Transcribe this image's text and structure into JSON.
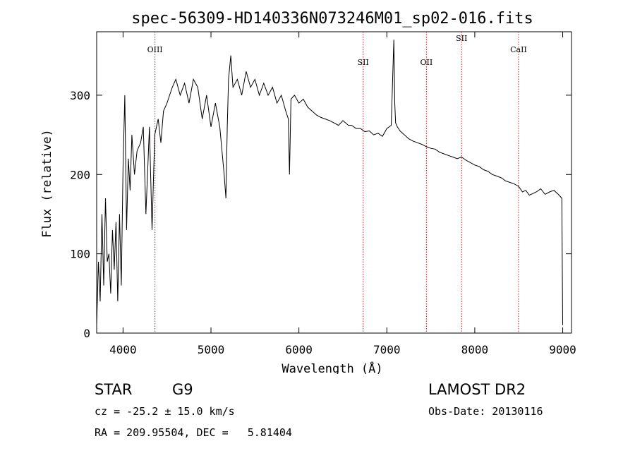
{
  "chart_data": {
    "type": "line",
    "title": "spec-56309-HD140336N073246M01_sp02-016.fits",
    "xlabel": "Wavelength (Å)",
    "ylabel": "Flux (relative)",
    "xlim": [
      3700,
      9100
    ],
    "ylim": [
      0,
      380
    ],
    "xticks": [
      4000,
      5000,
      6000,
      7000,
      8000,
      9000
    ],
    "yticks": [
      0,
      100,
      200,
      300
    ],
    "series_color": "#000000",
    "line_marker_color": "#b22222",
    "line_markers": [
      {
        "label": "OIII",
        "x": 4363
      },
      {
        "label": "SII",
        "x": 6731
      },
      {
        "label": "OII",
        "x": 7450
      },
      {
        "label": "SII",
        "x": 7850
      },
      {
        "label": "CaII",
        "x": 8498
      }
    ],
    "x": [
      3700,
      3720,
      3740,
      3760,
      3780,
      3800,
      3820,
      3840,
      3860,
      3880,
      3900,
      3920,
      3940,
      3960,
      3980,
      4000,
      4020,
      4040,
      4060,
      4080,
      4100,
      4130,
      4160,
      4200,
      4230,
      4260,
      4300,
      4330,
      4360,
      4400,
      4430,
      4460,
      4500,
      4530,
      4560,
      4600,
      4650,
      4700,
      4750,
      4800,
      4850,
      4900,
      4950,
      5000,
      5050,
      5100,
      5150,
      5170,
      5185,
      5200,
      5225,
      5250,
      5300,
      5350,
      5400,
      5450,
      5500,
      5550,
      5600,
      5650,
      5700,
      5750,
      5800,
      5850,
      5880,
      5893,
      5910,
      5950,
      6000,
      6050,
      6100,
      6150,
      6200,
      6250,
      6300,
      6350,
      6400,
      6450,
      6500,
      6563,
      6600,
      6650,
      6700,
      6750,
      6800,
      6850,
      6900,
      6950,
      7000,
      7050,
      7080,
      7090,
      7100,
      7120,
      7150,
      7200,
      7250,
      7300,
      7350,
      7400,
      7450,
      7500,
      7550,
      7600,
      7650,
      7700,
      7750,
      7800,
      7850,
      7900,
      7950,
      8000,
      8050,
      8100,
      8150,
      8200,
      8250,
      8300,
      8350,
      8400,
      8450,
      8498,
      8542,
      8580,
      8620,
      8662,
      8700,
      8750,
      8800,
      8850,
      8900,
      8950,
      8990,
      9000
    ],
    "y": [
      10,
      90,
      40,
      150,
      60,
      170,
      90,
      100,
      50,
      130,
      80,
      140,
      40,
      150,
      60,
      210,
      300,
      130,
      220,
      180,
      250,
      200,
      230,
      240,
      260,
      150,
      260,
      130,
      250,
      270,
      240,
      280,
      290,
      300,
      310,
      320,
      300,
      315,
      290,
      320,
      310,
      270,
      300,
      260,
      290,
      260,
      200,
      170,
      260,
      320,
      350,
      310,
      320,
      300,
      330,
      310,
      320,
      300,
      315,
      300,
      310,
      290,
      300,
      280,
      270,
      200,
      295,
      300,
      290,
      295,
      285,
      280,
      275,
      272,
      270,
      268,
      265,
      262,
      268,
      262,
      262,
      258,
      258,
      254,
      255,
      250,
      252,
      248,
      258,
      262,
      370,
      290,
      265,
      260,
      255,
      250,
      245,
      242,
      240,
      238,
      235,
      233,
      232,
      228,
      226,
      224,
      222,
      220,
      222,
      218,
      215,
      212,
      210,
      206,
      204,
      200,
      198,
      196,
      192,
      190,
      188,
      185,
      178,
      180,
      174,
      176,
      178,
      182,
      175,
      178,
      180,
      175,
      170,
      10
    ]
  },
  "footer": {
    "left": {
      "object_class": "STAR",
      "subclass": "G9",
      "cz": "cz = -25.2 ± 15.0 km/s",
      "radec": "RA = 209.95504, DEC =   5.81404"
    },
    "right": {
      "survey": "LAMOST DR2",
      "obs_date": "Obs-Date: 20130116"
    }
  }
}
